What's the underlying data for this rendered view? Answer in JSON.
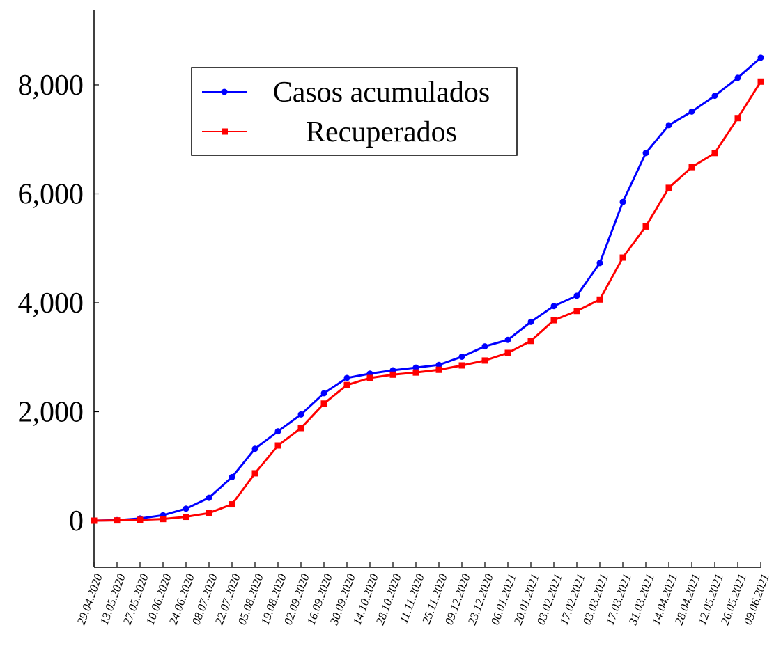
{
  "chart_data": {
    "type": "line",
    "categories": [
      "29.04.2020",
      "13.05.2020",
      "27.05.2020",
      "10.06.2020",
      "24.06.2020",
      "08.07.2020",
      "22.07.2020",
      "05.08.2020",
      "19.08.2020",
      "02.09.2020",
      "16.09.2020",
      "30.09.2020",
      "14.10.2020",
      "28.10.2020",
      "11.11.2020",
      "25.11.2020",
      "09.12.2020",
      "23.12.2020",
      "06.01.2021",
      "20.01.2021",
      "03.02.2021",
      "17.02.2021",
      "03.03.2021",
      "17.03.2021",
      "31.03.2021",
      "14.04.2021",
      "28.04.2021",
      "12.05.2021",
      "26.05.2021",
      "09.06.2021"
    ],
    "series": [
      {
        "name": "Casos acumulados",
        "color": "#0000ff",
        "marker": "circle",
        "values": [
          0,
          10,
          40,
          100,
          220,
          420,
          800,
          1320,
          1640,
          1950,
          2340,
          2620,
          2700,
          2760,
          2810,
          2860,
          3010,
          3200,
          3320,
          3650,
          3940,
          4130,
          4730,
          5850,
          6750,
          7260,
          7510,
          7800,
          8130,
          8500
        ]
      },
      {
        "name": "Recuperados",
        "color": "#ff0000",
        "marker": "square",
        "values": [
          0,
          5,
          15,
          30,
          70,
          140,
          300,
          870,
          1380,
          1700,
          2150,
          2490,
          2620,
          2680,
          2720,
          2770,
          2850,
          2940,
          3080,
          3300,
          3680,
          3850,
          4060,
          4830,
          5400,
          6110,
          6490,
          6750,
          7390,
          8060
        ]
      }
    ],
    "ylim": [
      -856,
      9367
    ],
    "yticks": [
      0,
      {
        "value": 2000,
        "label": "2,000"
      },
      {
        "value": 4000,
        "label": "4,000"
      },
      {
        "value": 6000,
        "label": "6,000"
      },
      {
        "value": 8000,
        "label": "8,000"
      }
    ],
    "grid": false,
    "legend": "upper left"
  }
}
